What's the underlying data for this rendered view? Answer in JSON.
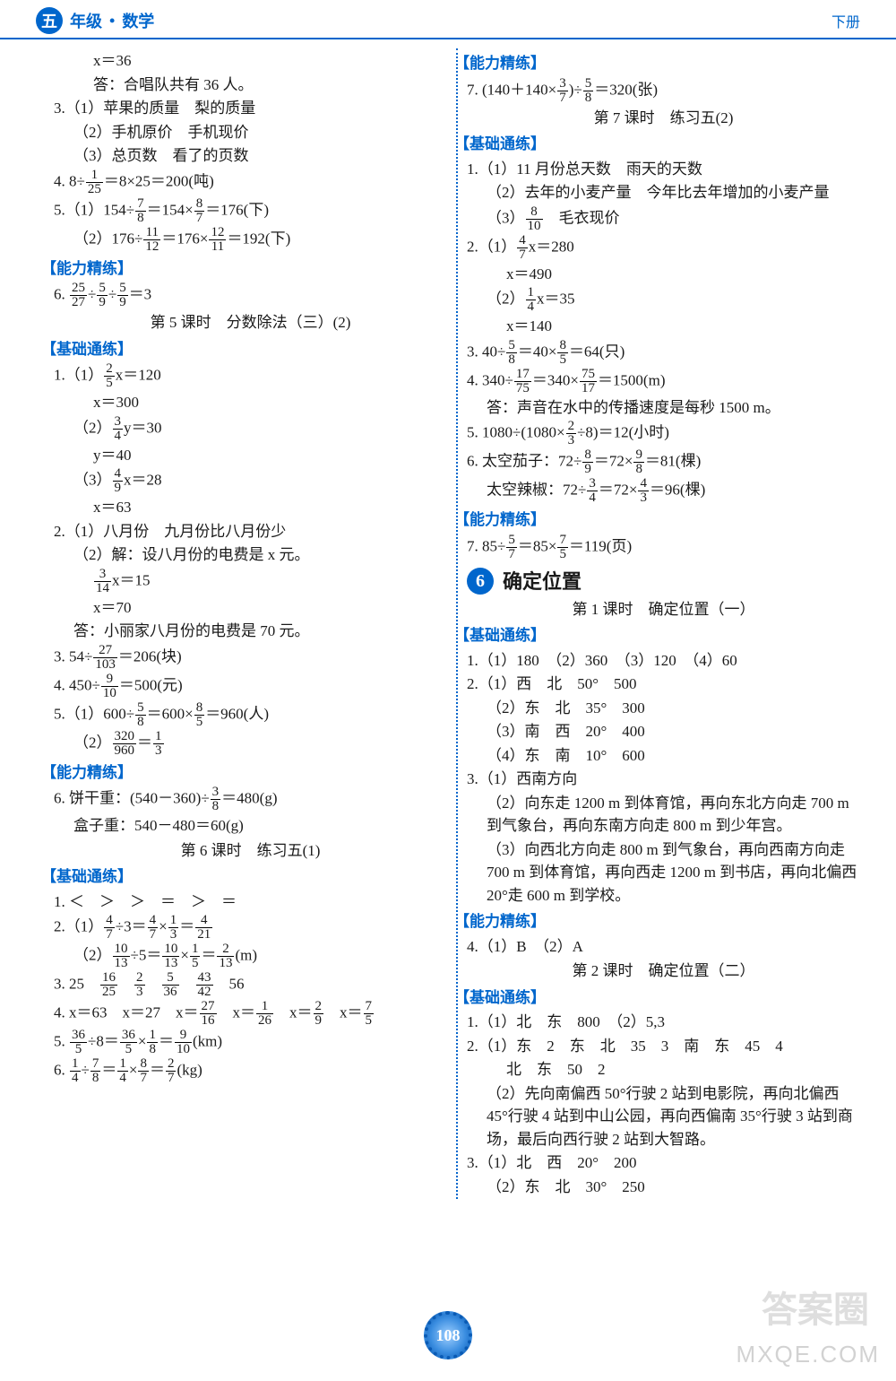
{
  "header": {
    "badge": "五",
    "grade": "年级",
    "dot": "•",
    "subject": "数学",
    "right": "下册"
  },
  "page_number": "108",
  "watermark_cn": "答案圈",
  "watermark_en": "MXQE.COM",
  "colors": {
    "accent": "#0066cc",
    "text": "#1a1a1a",
    "bg": "#ffffff"
  },
  "sections": {
    "ability": "【能力精练】",
    "basic": "【基础通练】"
  },
  "left": {
    "l0": "x＝36",
    "l1": "答：合唱队共有 36 人。",
    "l2": "3.（1）苹果的质量　梨的质量",
    "l3": "（2）手机原价　手机现价",
    "l4": "（3）总页数　看了的页数",
    "l5a": "4. 8÷",
    "l5b": "＝8×25＝200(吨)",
    "l6a": "5.（1）154÷",
    "l6b": "＝154×",
    "l6c": "＝176(下)",
    "l7a": "（2）176÷",
    "l7b": "＝176×",
    "l7c": "＝192(下)",
    "l8a": "6. ",
    "l8b": "÷",
    "l8c": "÷",
    "l8d": "＝3",
    "lesson5": "第 5 课时　分数除法（三）(2)",
    "l9a": "1.（1）",
    "l9b": "x＝120",
    "l10": "x＝300",
    "l11a": "（2）",
    "l11b": "y＝30",
    "l12": "y＝40",
    "l13a": "（3）",
    "l13b": "x＝28",
    "l14": "x＝63",
    "l15": "2.（1）八月份　九月份比八月份少",
    "l16": "（2）解：设八月份的电费是 x 元。",
    "l17a": "",
    "l17b": "x＝15",
    "l18": "x＝70",
    "l19": "答：小丽家八月份的电费是 70 元。",
    "l20a": "3. 54÷",
    "l20b": "＝206(块)",
    "l21a": "4. 450÷",
    "l21b": "＝500(元)",
    "l22a": "5.（1）600÷",
    "l22b": "＝600×",
    "l22c": "＝960(人)",
    "l23a": "（2）",
    "l23b": "＝",
    "l24a": "6. 饼干重：(540－360)÷",
    "l24b": "＝480(g)",
    "l25": "盒子重：540－480＝60(g)",
    "lesson6": "第 6 课时　练习五(1)",
    "l26": "1. ＜　＞　＞　＝　＞　＝",
    "l27a": "2.（1）",
    "l27b": "÷3＝",
    "l27c": "×",
    "l27d": "＝",
    "l28a": "（2）",
    "l28b": "÷5＝",
    "l28c": "×",
    "l28d": "＝",
    "l28e": "(m)",
    "l29a": "3. 25　",
    "l29b": "　56",
    "l30a": "4. x＝63　x＝27　x＝",
    "l30b": "　x＝",
    "l30c": "　x＝",
    "l30d": "　x＝",
    "l31a": "5. ",
    "l31b": "÷8＝",
    "l31c": "×",
    "l31d": "＝",
    "l31e": "(km)",
    "l32a": "6. ",
    "l32b": "÷",
    "l32c": "＝",
    "l32d": "×",
    "l32e": "＝",
    "l32f": "(kg)"
  },
  "right": {
    "r1a": "7. (140＋140×",
    "r1b": ")÷",
    "r1c": "＝320(张)",
    "lesson7": "第 7 课时　练习五(2)",
    "r2": "1.（1）11 月份总天数　雨天的天数",
    "r3": "（2）去年的小麦产量　今年比去年增加的小麦产量",
    "r4a": "（3）",
    "r4b": "　毛衣现价",
    "r5a": "2.（1）",
    "r5b": "x＝280",
    "r6": "x＝490",
    "r7a": "（2）",
    "r7b": "x＝35",
    "r8": "x＝140",
    "r9a": "3. 40÷",
    "r9b": "＝40×",
    "r9c": "＝64(只)",
    "r10a": "4. 340÷",
    "r10b": "＝340×",
    "r10c": "＝1500(m)",
    "r11": "答：声音在水中的传播速度是每秒 1500 m。",
    "r12a": "5. 1080÷(1080×",
    "r12b": "÷8)＝12(小时)",
    "r13a": "6. 太空茄子：72÷",
    "r13b": "＝72×",
    "r13c": "＝81(棵)",
    "r14a": "太空辣椒：72÷",
    "r14b": "＝72×",
    "r14c": "＝96(棵)",
    "r15a": "7. 85÷",
    "r15b": "＝85×",
    "r15c": "＝119(页)",
    "chapter6": "确定位置",
    "lesson_c1": "第 1 课时　确定位置（一）",
    "r16": "1.（1）180　（2）360　（3）120　（4）60",
    "r17": "2.（1）西　北　50°　500",
    "r18": "（2）东　北　35°　300",
    "r19": "（3）南　西　20°　400",
    "r20": "（4）东　南　10°　600",
    "r21": "3.（1）西南方向",
    "r22": "（2）向东走 1200 m 到体育馆，再向东北方向走 700 m 到气象台，再向东南方向走 800 m 到少年宫。",
    "r23": "（3）向西北方向走 800 m 到气象台，再向西南方向走 700 m 到体育馆，再向西走 1200 m 到书店，再向北偏西 20°走 600 m 到学校。",
    "r24": "4.（1）B　（2）A",
    "lesson_c2": "第 2 课时　确定位置（二）",
    "r25": "1.（1）北　东　800　（2）5,3",
    "r26": "2.（1）东　2　东　北　35　3　南　东　45　4",
    "r27": "北　东　50　2",
    "r28": "（2）先向南偏西 50°行驶 2 站到电影院，再向北偏西 45°行驶 4 站到中山公园，再向西偏南 35°行驶 3 站到商场，最后向西行驶 2 站到大智路。",
    "r29": "3.（1）北　西　20°　200",
    "r30": "（2）东　北　30°　250"
  },
  "fractions": {
    "f1_25": {
      "n": "1",
      "d": "25"
    },
    "f7_8": {
      "n": "7",
      "d": "8"
    },
    "f8_7": {
      "n": "8",
      "d": "7"
    },
    "f11_12": {
      "n": "11",
      "d": "12"
    },
    "f12_11": {
      "n": "12",
      "d": "11"
    },
    "f25_27": {
      "n": "25",
      "d": "27"
    },
    "f5_9": {
      "n": "5",
      "d": "9"
    },
    "f2_5": {
      "n": "2",
      "d": "5"
    },
    "f3_4": {
      "n": "3",
      "d": "4"
    },
    "f4_9": {
      "n": "4",
      "d": "9"
    },
    "f3_14": {
      "n": "3",
      "d": "14"
    },
    "f27_103": {
      "n": "27",
      "d": "103"
    },
    "f9_10": {
      "n": "9",
      "d": "10"
    },
    "f5_8": {
      "n": "5",
      "d": "8"
    },
    "f8_5": {
      "n": "8",
      "d": "5"
    },
    "f320_960": {
      "n": "320",
      "d": "960"
    },
    "f1_3": {
      "n": "1",
      "d": "3"
    },
    "f3_8": {
      "n": "3",
      "d": "8"
    },
    "f4_7": {
      "n": "4",
      "d": "7"
    },
    "f1_3b": {
      "n": "1",
      "d": "3"
    },
    "f4_21": {
      "n": "4",
      "d": "21"
    },
    "f10_13": {
      "n": "10",
      "d": "13"
    },
    "f1_5": {
      "n": "1",
      "d": "5"
    },
    "f2_13": {
      "n": "2",
      "d": "13"
    },
    "f16_25": {
      "n": "16",
      "d": "25"
    },
    "f2_3": {
      "n": "2",
      "d": "3"
    },
    "f5_36": {
      "n": "5",
      "d": "36"
    },
    "f43_42": {
      "n": "43",
      "d": "42"
    },
    "f27_16": {
      "n": "27",
      "d": "16"
    },
    "f1_26": {
      "n": "1",
      "d": "26"
    },
    "f2_9": {
      "n": "2",
      "d": "9"
    },
    "f7_5": {
      "n": "7",
      "d": "5"
    },
    "f36_5": {
      "n": "36",
      "d": "5"
    },
    "f1_8": {
      "n": "1",
      "d": "8"
    },
    "f9_10b": {
      "n": "9",
      "d": "10"
    },
    "f1_4": {
      "n": "1",
      "d": "4"
    },
    "f7_8b": {
      "n": "7",
      "d": "8"
    },
    "f8_7b": {
      "n": "8",
      "d": "7"
    },
    "f2_7": {
      "n": "2",
      "d": "7"
    },
    "f3_7": {
      "n": "3",
      "d": "7"
    },
    "f8_10": {
      "n": "8",
      "d": "10"
    },
    "f17_75": {
      "n": "17",
      "d": "75"
    },
    "f75_17": {
      "n": "75",
      "d": "17"
    },
    "f8_9": {
      "n": "8",
      "d": "9"
    },
    "f9_8": {
      "n": "9",
      "d": "8"
    },
    "f4_3": {
      "n": "4",
      "d": "3"
    },
    "f5_7": {
      "n": "5",
      "d": "7"
    },
    "f7_5b": {
      "n": "7",
      "d": "5"
    }
  }
}
